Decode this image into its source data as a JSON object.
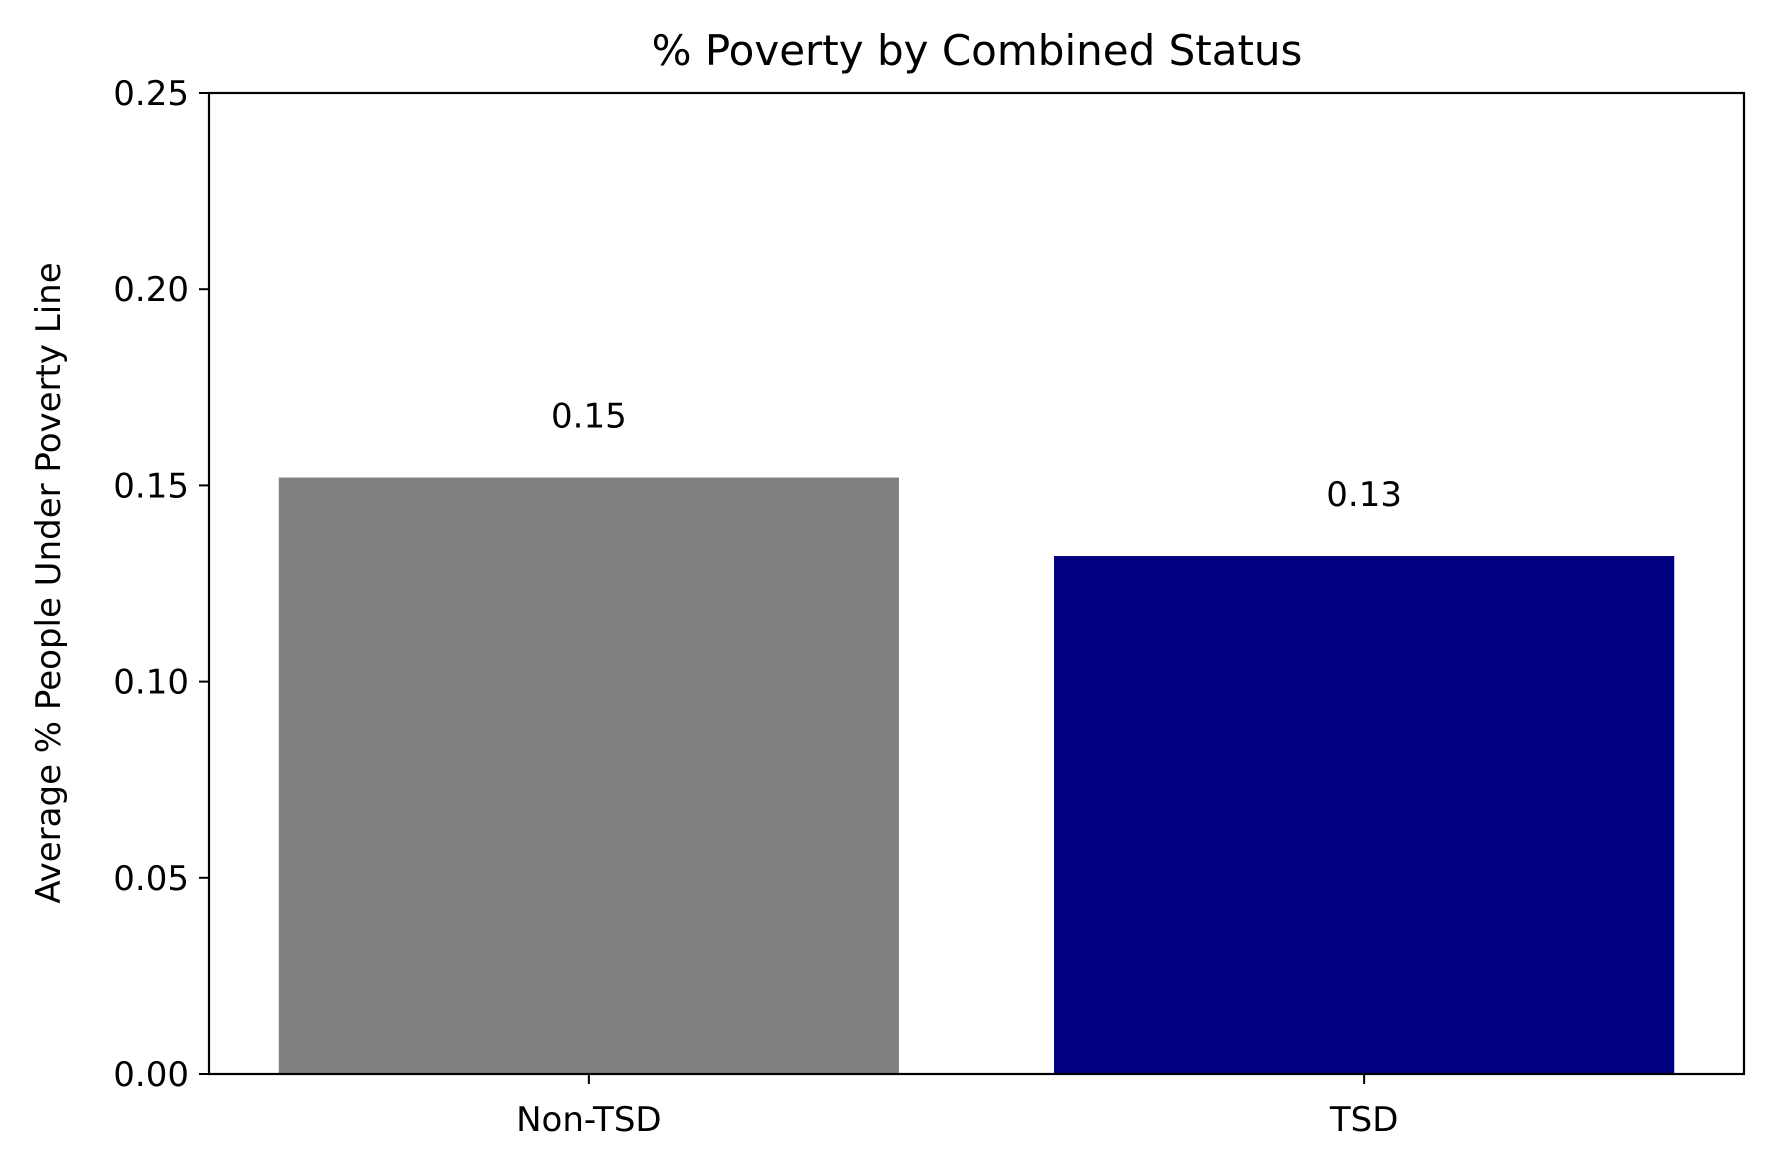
{
  "chart_data": {
    "type": "bar",
    "title": "% Poverty by Combined Status",
    "xlabel": "",
    "ylabel": "Average % People Under Poverty Line",
    "categories": [
      "Non-TSD",
      "TSD"
    ],
    "values": [
      0.152,
      0.132
    ],
    "value_labels": [
      "0.15",
      "0.13"
    ],
    "colors": [
      "#808080",
      "#000080"
    ],
    "ylim": [
      0,
      0.25
    ],
    "yticks": [
      0.0,
      0.05,
      0.1,
      0.15,
      0.2,
      0.25
    ],
    "ytick_labels": [
      "0.00",
      "0.05",
      "0.10",
      "0.15",
      "0.20",
      "0.25"
    ],
    "grid": false,
    "legend": "none"
  }
}
